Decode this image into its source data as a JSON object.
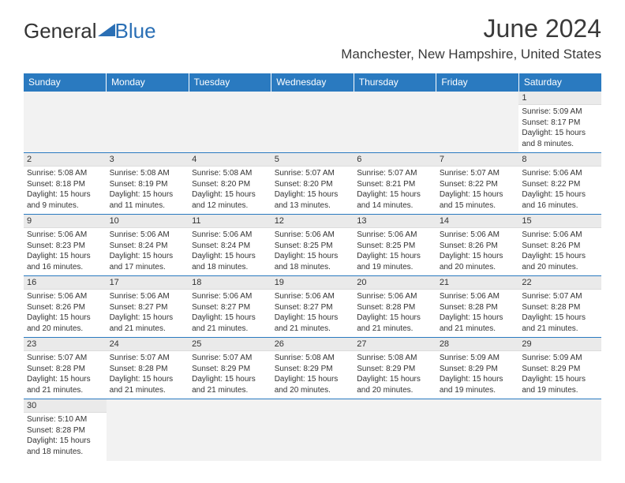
{
  "logo_general": "General",
  "logo_blue": "Blue",
  "title": "June 2024",
  "location": "Manchester, New Hampshire, United States",
  "colors": {
    "header_bg": "#2a7ac0",
    "header_text": "#ffffff",
    "daynum_bg": "#eaeaea",
    "rule": "#2a7ac0",
    "logo_blue": "#2a6fb5"
  },
  "weekdays": [
    "Sunday",
    "Monday",
    "Tuesday",
    "Wednesday",
    "Thursday",
    "Friday",
    "Saturday"
  ],
  "weeks": [
    [
      null,
      null,
      null,
      null,
      null,
      null,
      {
        "n": "1",
        "sr": "Sunrise: 5:09 AM",
        "ss": "Sunset: 8:17 PM",
        "dl": "Daylight: 15 hours and 8 minutes."
      }
    ],
    [
      {
        "n": "2",
        "sr": "Sunrise: 5:08 AM",
        "ss": "Sunset: 8:18 PM",
        "dl": "Daylight: 15 hours and 9 minutes."
      },
      {
        "n": "3",
        "sr": "Sunrise: 5:08 AM",
        "ss": "Sunset: 8:19 PM",
        "dl": "Daylight: 15 hours and 11 minutes."
      },
      {
        "n": "4",
        "sr": "Sunrise: 5:08 AM",
        "ss": "Sunset: 8:20 PM",
        "dl": "Daylight: 15 hours and 12 minutes."
      },
      {
        "n": "5",
        "sr": "Sunrise: 5:07 AM",
        "ss": "Sunset: 8:20 PM",
        "dl": "Daylight: 15 hours and 13 minutes."
      },
      {
        "n": "6",
        "sr": "Sunrise: 5:07 AM",
        "ss": "Sunset: 8:21 PM",
        "dl": "Daylight: 15 hours and 14 minutes."
      },
      {
        "n": "7",
        "sr": "Sunrise: 5:07 AM",
        "ss": "Sunset: 8:22 PM",
        "dl": "Daylight: 15 hours and 15 minutes."
      },
      {
        "n": "8",
        "sr": "Sunrise: 5:06 AM",
        "ss": "Sunset: 8:22 PM",
        "dl": "Daylight: 15 hours and 16 minutes."
      }
    ],
    [
      {
        "n": "9",
        "sr": "Sunrise: 5:06 AM",
        "ss": "Sunset: 8:23 PM",
        "dl": "Daylight: 15 hours and 16 minutes."
      },
      {
        "n": "10",
        "sr": "Sunrise: 5:06 AM",
        "ss": "Sunset: 8:24 PM",
        "dl": "Daylight: 15 hours and 17 minutes."
      },
      {
        "n": "11",
        "sr": "Sunrise: 5:06 AM",
        "ss": "Sunset: 8:24 PM",
        "dl": "Daylight: 15 hours and 18 minutes."
      },
      {
        "n": "12",
        "sr": "Sunrise: 5:06 AM",
        "ss": "Sunset: 8:25 PM",
        "dl": "Daylight: 15 hours and 18 minutes."
      },
      {
        "n": "13",
        "sr": "Sunrise: 5:06 AM",
        "ss": "Sunset: 8:25 PM",
        "dl": "Daylight: 15 hours and 19 minutes."
      },
      {
        "n": "14",
        "sr": "Sunrise: 5:06 AM",
        "ss": "Sunset: 8:26 PM",
        "dl": "Daylight: 15 hours and 20 minutes."
      },
      {
        "n": "15",
        "sr": "Sunrise: 5:06 AM",
        "ss": "Sunset: 8:26 PM",
        "dl": "Daylight: 15 hours and 20 minutes."
      }
    ],
    [
      {
        "n": "16",
        "sr": "Sunrise: 5:06 AM",
        "ss": "Sunset: 8:26 PM",
        "dl": "Daylight: 15 hours and 20 minutes."
      },
      {
        "n": "17",
        "sr": "Sunrise: 5:06 AM",
        "ss": "Sunset: 8:27 PM",
        "dl": "Daylight: 15 hours and 21 minutes."
      },
      {
        "n": "18",
        "sr": "Sunrise: 5:06 AM",
        "ss": "Sunset: 8:27 PM",
        "dl": "Daylight: 15 hours and 21 minutes."
      },
      {
        "n": "19",
        "sr": "Sunrise: 5:06 AM",
        "ss": "Sunset: 8:27 PM",
        "dl": "Daylight: 15 hours and 21 minutes."
      },
      {
        "n": "20",
        "sr": "Sunrise: 5:06 AM",
        "ss": "Sunset: 8:28 PM",
        "dl": "Daylight: 15 hours and 21 minutes."
      },
      {
        "n": "21",
        "sr": "Sunrise: 5:06 AM",
        "ss": "Sunset: 8:28 PM",
        "dl": "Daylight: 15 hours and 21 minutes."
      },
      {
        "n": "22",
        "sr": "Sunrise: 5:07 AM",
        "ss": "Sunset: 8:28 PM",
        "dl": "Daylight: 15 hours and 21 minutes."
      }
    ],
    [
      {
        "n": "23",
        "sr": "Sunrise: 5:07 AM",
        "ss": "Sunset: 8:28 PM",
        "dl": "Daylight: 15 hours and 21 minutes."
      },
      {
        "n": "24",
        "sr": "Sunrise: 5:07 AM",
        "ss": "Sunset: 8:28 PM",
        "dl": "Daylight: 15 hours and 21 minutes."
      },
      {
        "n": "25",
        "sr": "Sunrise: 5:07 AM",
        "ss": "Sunset: 8:29 PM",
        "dl": "Daylight: 15 hours and 21 minutes."
      },
      {
        "n": "26",
        "sr": "Sunrise: 5:08 AM",
        "ss": "Sunset: 8:29 PM",
        "dl": "Daylight: 15 hours and 20 minutes."
      },
      {
        "n": "27",
        "sr": "Sunrise: 5:08 AM",
        "ss": "Sunset: 8:29 PM",
        "dl": "Daylight: 15 hours and 20 minutes."
      },
      {
        "n": "28",
        "sr": "Sunrise: 5:09 AM",
        "ss": "Sunset: 8:29 PM",
        "dl": "Daylight: 15 hours and 19 minutes."
      },
      {
        "n": "29",
        "sr": "Sunrise: 5:09 AM",
        "ss": "Sunset: 8:29 PM",
        "dl": "Daylight: 15 hours and 19 minutes."
      }
    ],
    [
      {
        "n": "30",
        "sr": "Sunrise: 5:10 AM",
        "ss": "Sunset: 8:28 PM",
        "dl": "Daylight: 15 hours and 18 minutes."
      },
      null,
      null,
      null,
      null,
      null,
      null
    ]
  ]
}
